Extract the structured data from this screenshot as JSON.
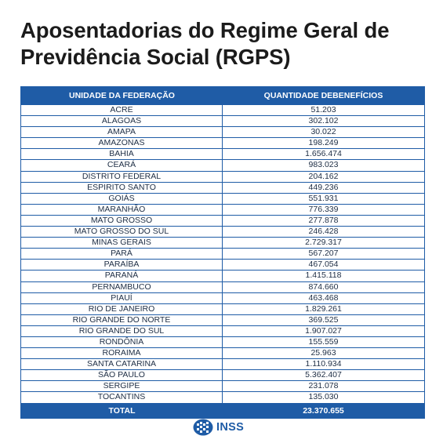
{
  "title": "Aposentadorias do Regime Geral de Previdência Social (RGPS)",
  "table": {
    "headers": [
      "UNIDADE DA FEDERAÇÃO",
      "QUANTIDADE DEBENEFÍCIOS"
    ],
    "rows": [
      [
        "ACRE",
        "51.203"
      ],
      [
        "ALAGOAS",
        "302.102"
      ],
      [
        "AMAPA",
        "30.022"
      ],
      [
        "AMAZONAS",
        "198.249"
      ],
      [
        "BAHIA",
        "1.656.474"
      ],
      [
        "CEARÁ",
        "983.023"
      ],
      [
        "DISTRITO FEDERAL",
        "204.162"
      ],
      [
        "ESPIRITO SANTO",
        "449.236"
      ],
      [
        "GOIÁS",
        "551.931"
      ],
      [
        "MARANHÃO",
        "776.339"
      ],
      [
        "MATO GROSSO",
        "277.878"
      ],
      [
        "MATO GROSSO DO SUL",
        "246.428"
      ],
      [
        "MINAS GERAIS",
        "2.729.317"
      ],
      [
        "PARÁ",
        "567.207"
      ],
      [
        "PARAÍBA",
        "467.054"
      ],
      [
        "PARANÁ",
        "1.415.118"
      ],
      [
        "PERNAMBUCO",
        "874.660"
      ],
      [
        "PIAUÍ",
        "463.468"
      ],
      [
        "RIO DE JANEIRO",
        "1.829.261"
      ],
      [
        "RIO GRANDE DO NORTE",
        "369.525"
      ],
      [
        "RIO GRANDE DO SUL",
        "1.907.027"
      ],
      [
        "RONDÔNIA",
        "155.559"
      ],
      [
        "RORAIMA",
        "25.963"
      ],
      [
        "SANTA CATARINA",
        "1.110.934"
      ],
      [
        "SÃO PAULO",
        "5.362.407"
      ],
      [
        "SERGIPE",
        "231.078"
      ],
      [
        "TOCANTINS",
        "135.030"
      ]
    ],
    "total_label": "TOTAL",
    "total_value": "23.370.655"
  },
  "logo": {
    "text": "INSS",
    "icon": "inss-logo-icon",
    "color": "#1f5ca6"
  },
  "colors": {
    "header_bg": "#1f5ca6",
    "header_text": "#ffffff",
    "border": "#1f5ca6"
  }
}
